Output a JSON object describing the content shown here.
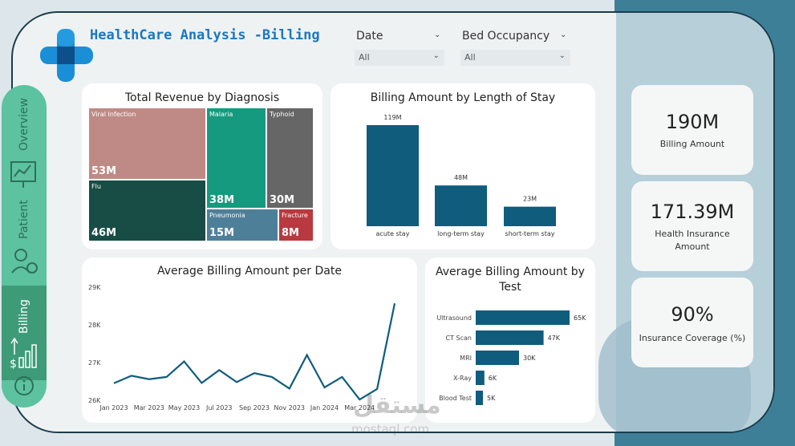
{
  "header": {
    "title": "HealthCare Analysis  -Billing"
  },
  "filters": [
    {
      "label": "Date",
      "value": "All"
    },
    {
      "label": "Bed Occupancy",
      "value": "All"
    }
  ],
  "sidebar": {
    "items": [
      "Overview",
      "Patient",
      "Billing"
    ]
  },
  "treemap": {
    "title": "Total Revenue by Diagnosis",
    "cells": [
      {
        "label": "Viral Infection",
        "value": "53M",
        "color": "#bf8a85"
      },
      {
        "label": "Malaria",
        "value": "38M",
        "color": "#159a7f"
      },
      {
        "label": "Typhoid",
        "value": "30M",
        "color": "#666666"
      },
      {
        "label": "Flu",
        "value": "46M",
        "color": "#174d44"
      },
      {
        "label": "Pneumonia",
        "value": "15M",
        "color": "#4e7f99"
      },
      {
        "label": "Fracture",
        "value": "8M",
        "color": "#b8393f"
      }
    ]
  },
  "chart_data": [
    {
      "type": "bar",
      "title": "Billing Amount by Length of Stay",
      "categories": [
        "acute stay",
        "long-term stay",
        "short-term stay"
      ],
      "values": [
        119,
        48,
        23
      ],
      "labels": [
        "119M",
        "48M",
        "23M"
      ],
      "color": "#0f5c7d"
    },
    {
      "type": "line",
      "title": "Average Billing Amount per Date",
      "x": [
        "Jan 2023",
        "Feb 2023",
        "Mar 2023",
        "Apr 2023",
        "May 2023",
        "Jun 2023",
        "Jul 2023",
        "Aug 2023",
        "Sep 2023",
        "Oct 2023",
        "Nov 2023",
        "Dec 2023",
        "Jan 2024",
        "Feb 2024",
        "Mar 2024",
        "Apr 2024",
        "May 2024"
      ],
      "values": [
        26450,
        26650,
        26560,
        26620,
        27030,
        26460,
        26800,
        26480,
        26720,
        26620,
        26310,
        27200,
        26340,
        26620,
        26020,
        26300,
        28570
      ],
      "xticks": [
        "Jan 2023",
        "Mar 2023",
        "May 2023",
        "Jul 2023",
        "Sep 2023",
        "Nov 2023",
        "Jan 2024",
        "Mar 2024"
      ],
      "yticks": [
        "26K",
        "27K",
        "28K",
        "29K"
      ],
      "ylim": [
        26000,
        29000
      ],
      "color": "#0f5c7d"
    },
    {
      "type": "bar",
      "orientation": "horizontal",
      "title": "Average Billing Amount by Test",
      "categories": [
        "Ultrasound",
        "CT Scan",
        "MRI",
        "X-Ray",
        "Blood Test"
      ],
      "values": [
        65,
        47,
        30,
        6,
        5
      ],
      "labels": [
        "65K",
        "47K",
        "30K",
        "6K",
        "5K"
      ],
      "color": "#0f5c7d"
    }
  ],
  "kpis": [
    {
      "value": "190M",
      "label": "Billing Amount"
    },
    {
      "value": "171.39M",
      "label": "Health Insurance Amount"
    },
    {
      "value": "90%",
      "label": "Insurance Coverage (%)"
    }
  ],
  "watermark": {
    "text": "مستقل",
    "sub": "mostaql.com"
  }
}
